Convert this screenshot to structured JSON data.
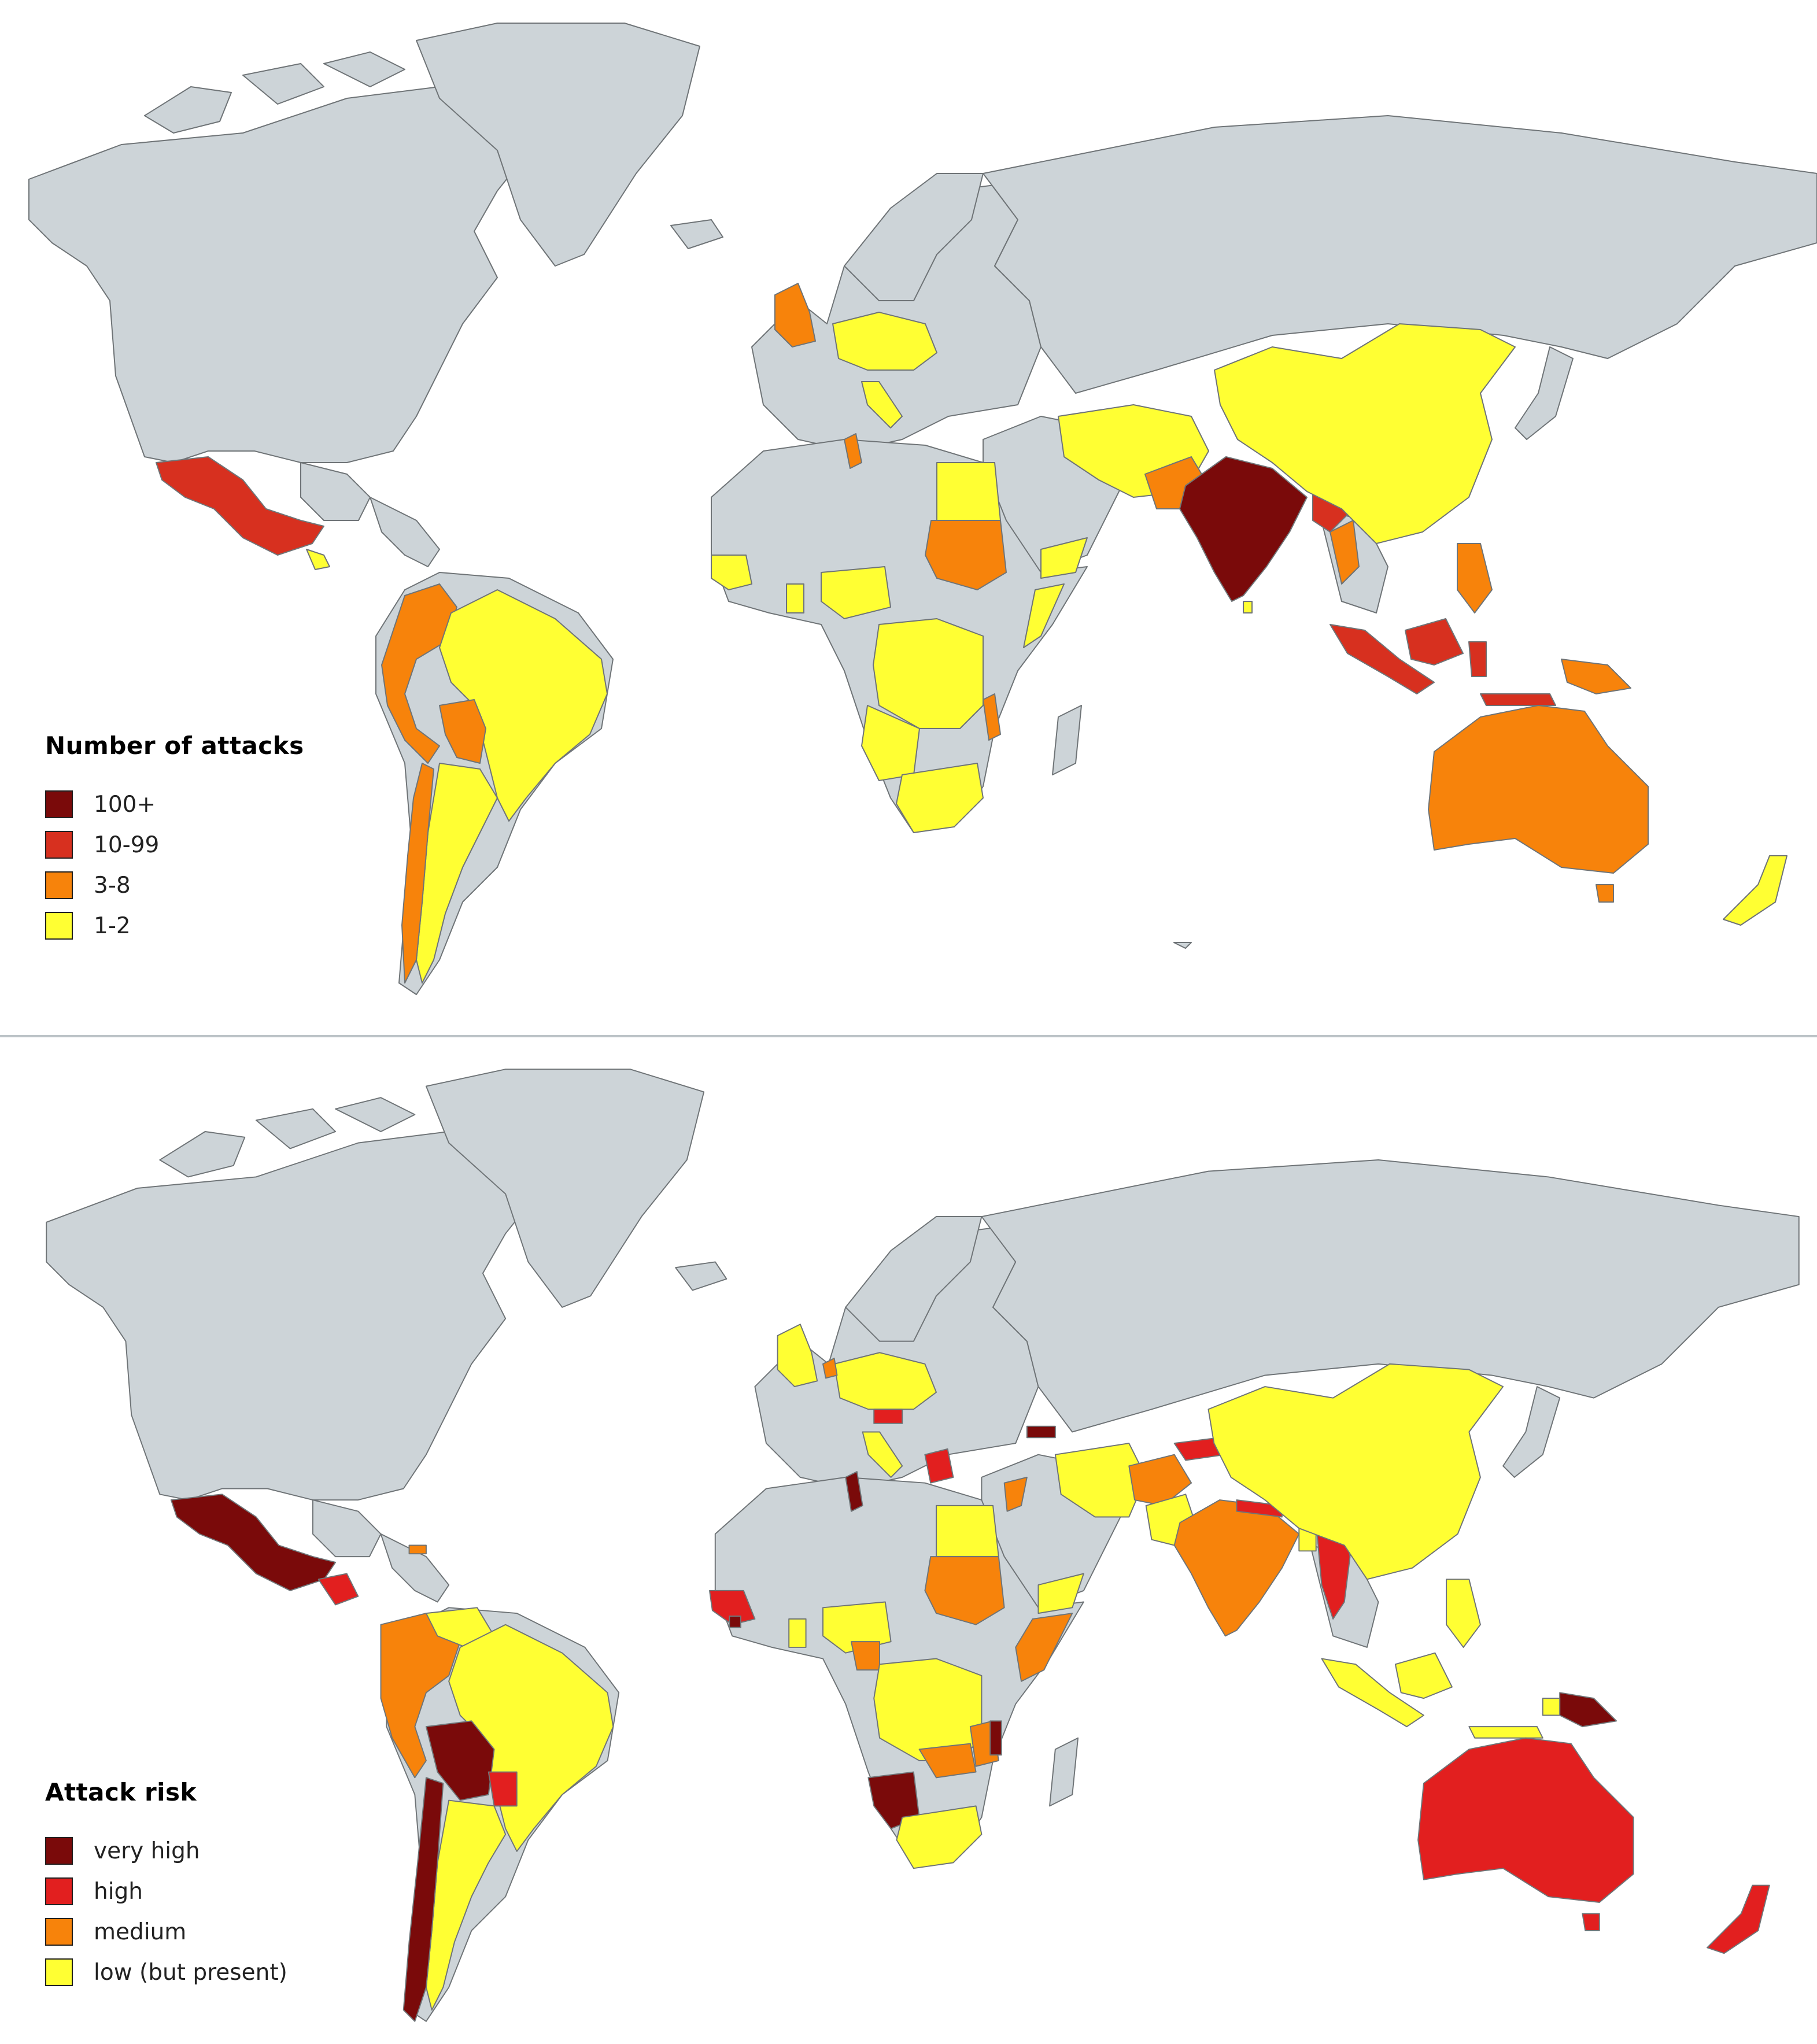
{
  "colors": {
    "ocean": "#ffffff",
    "land_no_data": "#cdd4d8",
    "border": "#6f7477",
    "darkred": "#7a0a0a",
    "red": "#d7301f",
    "bright_red": "#e21f1f",
    "orange": "#f7830b",
    "yellow": "#ffff33"
  },
  "map_top": {
    "legend": {
      "title": "Number of attacks",
      "items": [
        {
          "label": "100+",
          "color": "#7a0a0a"
        },
        {
          "label": "10-99",
          "color": "#d7301f"
        },
        {
          "label": "3-8",
          "color": "#f7830b"
        },
        {
          "label": "1-2",
          "color": "#ffff33"
        }
      ]
    },
    "highlighted_regions": [
      {
        "region": "india",
        "class": "100+"
      },
      {
        "region": "mexico",
        "class": "10-99"
      },
      {
        "region": "indonesia",
        "class": "10-99"
      },
      {
        "region": "bangladesh-myanmar",
        "class": "10-99"
      },
      {
        "region": "united-kingdom",
        "class": "3-8"
      },
      {
        "region": "australia",
        "class": "3-8"
      },
      {
        "region": "sudan",
        "class": "3-8"
      },
      {
        "region": "colombia-peru",
        "class": "3-8"
      },
      {
        "region": "bolivia",
        "class": "3-8"
      },
      {
        "region": "chile-argentina-west",
        "class": "3-8"
      },
      {
        "region": "philippines",
        "class": "3-8"
      },
      {
        "region": "papua-new-guinea",
        "class": "3-8"
      },
      {
        "region": "pakistan",
        "class": "3-8"
      },
      {
        "region": "china",
        "class": "1-2"
      },
      {
        "region": "brazil",
        "class": "1-2"
      },
      {
        "region": "argentina",
        "class": "1-2"
      },
      {
        "region": "iran-afghanistan",
        "class": "1-2"
      },
      {
        "region": "central-africa",
        "class": "1-2"
      },
      {
        "region": "south-africa",
        "class": "1-2"
      },
      {
        "region": "egypt",
        "class": "1-2"
      },
      {
        "region": "nigeria",
        "class": "1-2"
      },
      {
        "region": "new-zealand",
        "class": "1-2"
      },
      {
        "region": "europe-central",
        "class": "1-2"
      }
    ]
  },
  "map_bottom": {
    "legend": {
      "title": "Attack risk",
      "items": [
        {
          "label": "very high",
          "color": "#7a0a0a"
        },
        {
          "label": "high",
          "color": "#e21f1f"
        },
        {
          "label": "medium",
          "color": "#f7830b"
        },
        {
          "label": "low (but present)",
          "color": "#ffff33"
        }
      ]
    },
    "highlighted_regions": [
      {
        "region": "mexico",
        "class": "very high"
      },
      {
        "region": "bolivia",
        "class": "very high"
      },
      {
        "region": "chile",
        "class": "very high"
      },
      {
        "region": "namibia",
        "class": "very high"
      },
      {
        "region": "papua-new-guinea",
        "class": "very high"
      },
      {
        "region": "tunisia",
        "class": "very high"
      },
      {
        "region": "australia",
        "class": "high"
      },
      {
        "region": "new-zealand",
        "class": "high"
      },
      {
        "region": "myanmar",
        "class": "high"
      },
      {
        "region": "paraguay",
        "class": "high"
      },
      {
        "region": "greece",
        "class": "high"
      },
      {
        "region": "india",
        "class": "medium"
      },
      {
        "region": "sudan",
        "class": "medium"
      },
      {
        "region": "colombia-peru",
        "class": "medium"
      },
      {
        "region": "afghanistan",
        "class": "medium"
      },
      {
        "region": "somalia-kenya",
        "class": "medium"
      },
      {
        "region": "china",
        "class": "low (but present)"
      },
      {
        "region": "brazil",
        "class": "low (but present)"
      },
      {
        "region": "argentina",
        "class": "low (but present)"
      },
      {
        "region": "indonesia",
        "class": "low (but present)"
      },
      {
        "region": "central-africa",
        "class": "low (but present)"
      },
      {
        "region": "south-africa",
        "class": "low (but present)"
      },
      {
        "region": "egypt",
        "class": "low (but present)"
      },
      {
        "region": "europe-central",
        "class": "low (but present)"
      }
    ]
  }
}
